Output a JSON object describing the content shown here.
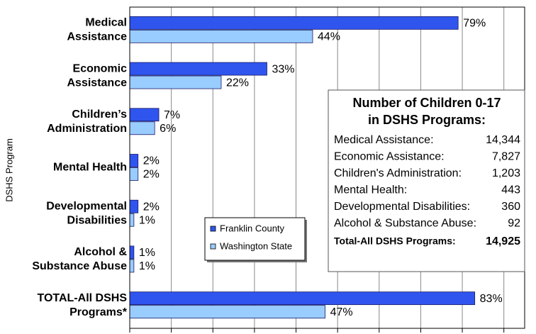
{
  "chart_data": {
    "type": "hbar",
    "y_label": "DSHS Program",
    "categories": [
      [
        "Medical",
        "Assistance"
      ],
      [
        "Economic",
        "Assistance"
      ],
      [
        "Children’s",
        "Administration"
      ],
      [
        "Mental Health"
      ],
      [
        "Developmental",
        "Disabilities"
      ],
      [
        "Alcohol &",
        "Substance Abuse"
      ],
      [
        "TOTAL-All DSHS",
        "Programs*"
      ]
    ],
    "series": [
      {
        "name": "Franklin County",
        "color": "#2f55ee",
        "values": [
          79,
          33,
          7,
          2,
          2,
          1,
          83
        ],
        "value_labels": [
          "79%",
          "33%",
          "7%",
          "2%",
          "2%",
          "1%",
          "83%"
        ]
      },
      {
        "name": "Washington State",
        "color": "#99ccff",
        "values": [
          44,
          22,
          6,
          2,
          1,
          1,
          47
        ],
        "value_labels": [
          "44%",
          "22%",
          "6%",
          "2%",
          "1%",
          "1%",
          "47%"
        ]
      }
    ],
    "xlim": [
      0,
      95
    ],
    "xticks": [
      0,
      10,
      20,
      30,
      40,
      50,
      60,
      70,
      80,
      90
    ],
    "grid": true,
    "inset_table": {
      "title": [
        "Number of Children 0-17",
        "in DSHS Programs:"
      ],
      "rows": [
        {
          "label": "Medical Assistance:",
          "value": "14,344"
        },
        {
          "label": "Economic Assistance:",
          "value": "7,827"
        },
        {
          "label": "Children's Administration:",
          "value": "1,203"
        },
        {
          "label": "Mental Health:",
          "value": "443"
        },
        {
          "label": "Developmental Disabilities:",
          "value": "360"
        },
        {
          "label": "Alcohol & Substance Abuse:",
          "value": "92"
        }
      ],
      "total": {
        "label": "Total-All DSHS Programs:",
        "value": "14,925"
      }
    }
  }
}
